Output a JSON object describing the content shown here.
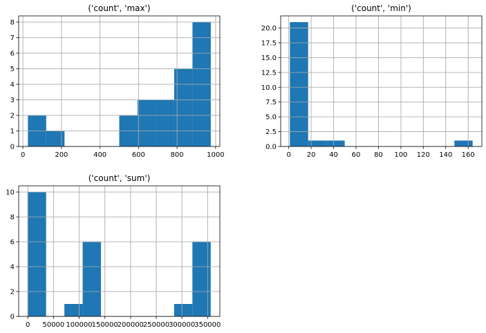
{
  "bar_color": "#1f77b4",
  "grid": true,
  "chart_data": [
    {
      "type": "bar",
      "title": "('count', 'max')",
      "xlabel": "",
      "ylabel": "",
      "bins": [
        [
          26,
          121
        ],
        [
          121,
          216
        ],
        [
          216,
          310
        ],
        [
          310,
          405
        ],
        [
          405,
          500
        ],
        [
          500,
          595
        ],
        [
          595,
          690
        ],
        [
          690,
          785
        ],
        [
          785,
          880
        ],
        [
          880,
          975
        ]
      ],
      "values": [
        2,
        1,
        0,
        0,
        0,
        2,
        3,
        3,
        5,
        8
      ],
      "xlim": [
        -22,
        1022
      ],
      "ylim": [
        0,
        8.4
      ],
      "xticks": [
        0,
        200,
        400,
        600,
        800,
        1000
      ],
      "xtick_labels": [
        "0",
        "200",
        "400",
        "600",
        "800",
        "1000"
      ],
      "yticks": [
        0,
        1,
        2,
        3,
        4,
        5,
        6,
        7,
        8
      ],
      "ytick_labels": [
        "0",
        "1",
        "2",
        "3",
        "4",
        "5",
        "6",
        "7",
        "8"
      ]
    },
    {
      "type": "bar",
      "title": "('count', 'min')",
      "xlabel": "",
      "ylabel": "",
      "bins": [
        [
          1,
          17.3
        ],
        [
          17.3,
          33.6
        ],
        [
          33.6,
          49.9
        ],
        [
          49.9,
          66.2
        ],
        [
          66.2,
          82.5
        ],
        [
          82.5,
          98.8
        ],
        [
          98.8,
          115.1
        ],
        [
          115.1,
          131.4
        ],
        [
          131.4,
          147.7
        ],
        [
          147.7,
          164
        ]
      ],
      "values": [
        21,
        1,
        1,
        0,
        0,
        0,
        0,
        0,
        0,
        1
      ],
      "xlim": [
        -7.2,
        172.2
      ],
      "ylim": [
        0,
        22.05
      ],
      "xticks": [
        0,
        20,
        40,
        60,
        80,
        100,
        120,
        140,
        160
      ],
      "xtick_labels": [
        "0",
        "20",
        "40",
        "60",
        "80",
        "100",
        "120",
        "140",
        "160"
      ],
      "yticks": [
        0,
        2.5,
        5,
        7.5,
        10,
        12.5,
        15,
        17.5,
        20
      ],
      "ytick_labels": [
        "0.0",
        "2.5",
        "5.0",
        "7.5",
        "10.0",
        "12.5",
        "15.0",
        "17.5",
        "20.0"
      ]
    },
    {
      "type": "bar",
      "title": "('count', 'sum')",
      "xlabel": "",
      "ylabel": "",
      "bins": [
        [
          0,
          35600
        ],
        [
          35600,
          71200
        ],
        [
          71200,
          106800
        ],
        [
          106800,
          142400
        ],
        [
          142400,
          178000
        ],
        [
          178000,
          213600
        ],
        [
          213600,
          249200
        ],
        [
          249200,
          284800
        ],
        [
          284800,
          320400
        ],
        [
          320400,
          356000
        ]
      ],
      "values": [
        10,
        0,
        1,
        6,
        0,
        0,
        0,
        0,
        1,
        6
      ],
      "xlim": [
        -17800,
        373800
      ],
      "ylim": [
        0,
        10.5
      ],
      "xticks": [
        0,
        50000,
        100000,
        150000,
        200000,
        250000,
        300000,
        350000
      ],
      "xtick_labels": [
        "0",
        "50000",
        "100000",
        "150000",
        "200000",
        "250000",
        "300000",
        "350000"
      ],
      "yticks": [
        0,
        2,
        4,
        6,
        8,
        10
      ],
      "ytick_labels": [
        "0",
        "2",
        "4",
        "6",
        "8",
        "10"
      ]
    }
  ]
}
